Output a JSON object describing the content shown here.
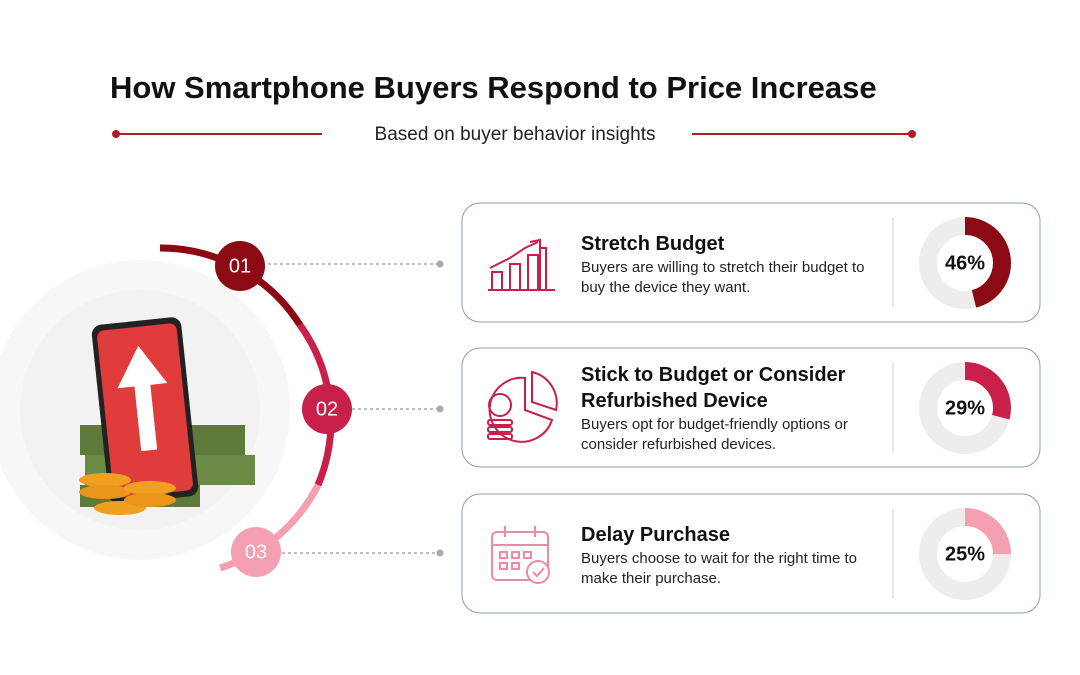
{
  "header": {
    "title": "How Smartphone Buyers Respond to Price Increase",
    "subtitle": "Based on buyer behavior insights"
  },
  "items": [
    {
      "number": "01",
      "title": "Stretch Budget",
      "description": "Buyers are willing to stretch their budget to buy the device they want.",
      "value": 46,
      "value_label": "46%",
      "color": "#8b0a14"
    },
    {
      "number": "02",
      "title": "Stick to Budget or Consider Refurbished Device",
      "description": "Buyers opt for budget-friendly options or consider refurbished devices.",
      "value": 29,
      "value_label": "29%",
      "color": "#c8204a"
    },
    {
      "number": "03",
      "title": "Delay Purchase",
      "description": "Buyers choose to wait for the right time to make their purchase.",
      "value": 25,
      "value_label": "25%",
      "color": "#f4a0b0"
    }
  ]
}
